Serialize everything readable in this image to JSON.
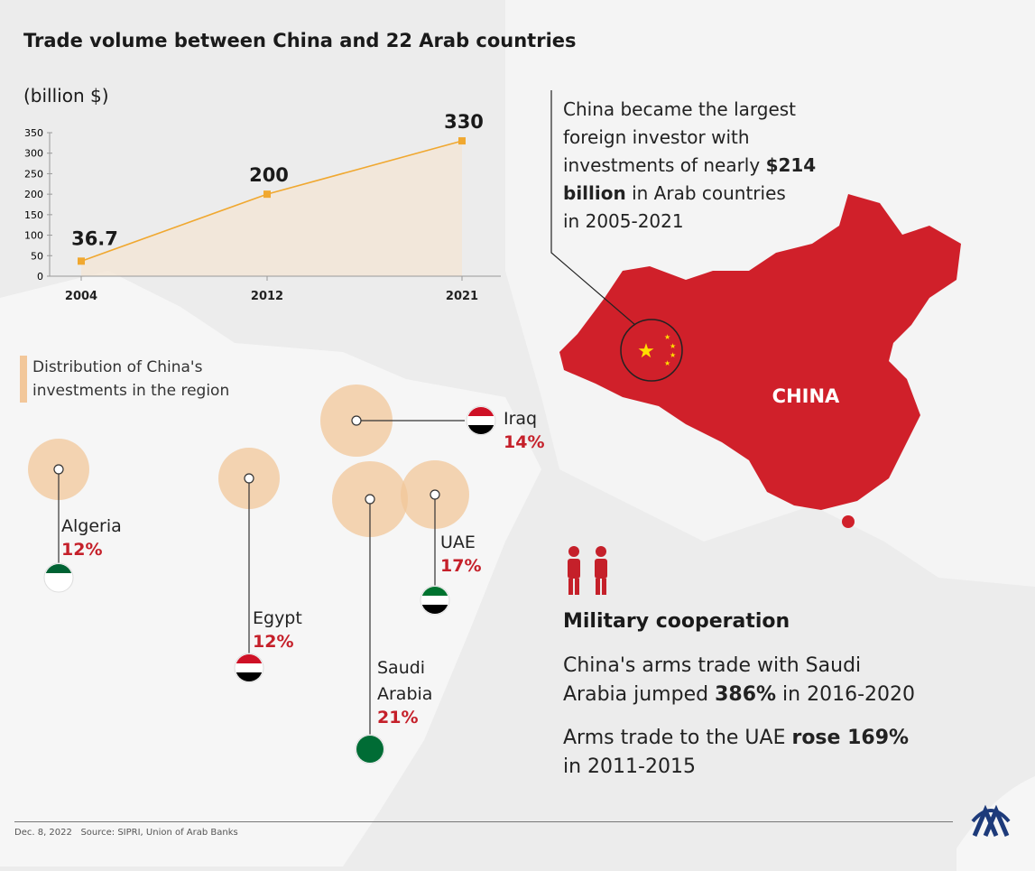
{
  "chart_data": {
    "type": "line",
    "title": "Trade volume between China and 22 Arab countries",
    "subtitle": "(billion $)",
    "categories": [
      "2004",
      "2012",
      "2021"
    ],
    "values": [
      36.7,
      200,
      330
    ],
    "data_labels": [
      "36.7",
      "200",
      "330"
    ],
    "yticks": [
      "0",
      "50",
      "100",
      "150",
      "200",
      "250",
      "300",
      "350"
    ],
    "ylim": [
      0,
      350
    ],
    "color": "#f0a830",
    "fill": "#f4e6d6"
  },
  "distribution": {
    "title_line1": "Distribution of China's",
    "title_line2": "investments in the region",
    "countries": [
      {
        "name": "Iraq",
        "pct": "14%"
      },
      {
        "name": "Algeria",
        "pct": "12%"
      },
      {
        "name": "Egypt",
        "pct": "12%"
      },
      {
        "name": "UAE",
        "pct": "17%"
      },
      {
        "name": "Saudi",
        "name2": "Arabia",
        "pct": "21%"
      }
    ],
    "bubble_color": "#f2c79a"
  },
  "investment": {
    "l1": "China became the largest",
    "l2": "foreign investor with",
    "l3a": "investments of nearly ",
    "l3b": "$214",
    "l4a": "billion",
    "l4b": " in Arab countries",
    "l5": "in 2005-2021"
  },
  "china_label": "CHINA",
  "china_color": "#d0202a",
  "military": {
    "title": "Military cooperation",
    "p1a": "China's arms trade with Saudi",
    "p1b": "Arabia jumped ",
    "p1c": "386%",
    "p1d": " in 2016-2020",
    "p2a": "Arms trade to the UAE ",
    "p2b": "rose 169%",
    "p2c": "in 2011-2015"
  },
  "footer": {
    "date": "Dec. 8, 2022",
    "source": "Source: SIPRI, Union of Arab Banks",
    "logo": "AA"
  }
}
